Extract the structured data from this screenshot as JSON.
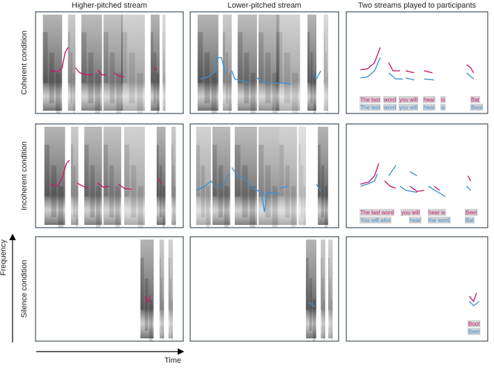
{
  "columns": [
    "Higher-pitched stream",
    "Lower-pitched stream",
    "Two streams played to participants"
  ],
  "rows": [
    "Coherent condition",
    "Incoherent condition",
    "Silence condition"
  ],
  "axes": {
    "y": "Frequency",
    "x": "Time"
  },
  "word_labels": [
    {
      "magenta": [
        "The last",
        "word",
        "you will",
        "hear",
        "is",
        "Bat"
      ],
      "blue": [
        "The last",
        "word",
        "you will",
        "hear",
        "is",
        "Boot"
      ]
    },
    {
      "magenta": [
        "The last word",
        "you will",
        "hear is",
        "Beet"
      ],
      "blue": [
        "You will also",
        "hear",
        "the word",
        "Bat"
      ]
    },
    {
      "magenta": [
        "Boot"
      ],
      "blue": [
        "Beet"
      ]
    }
  ]
}
